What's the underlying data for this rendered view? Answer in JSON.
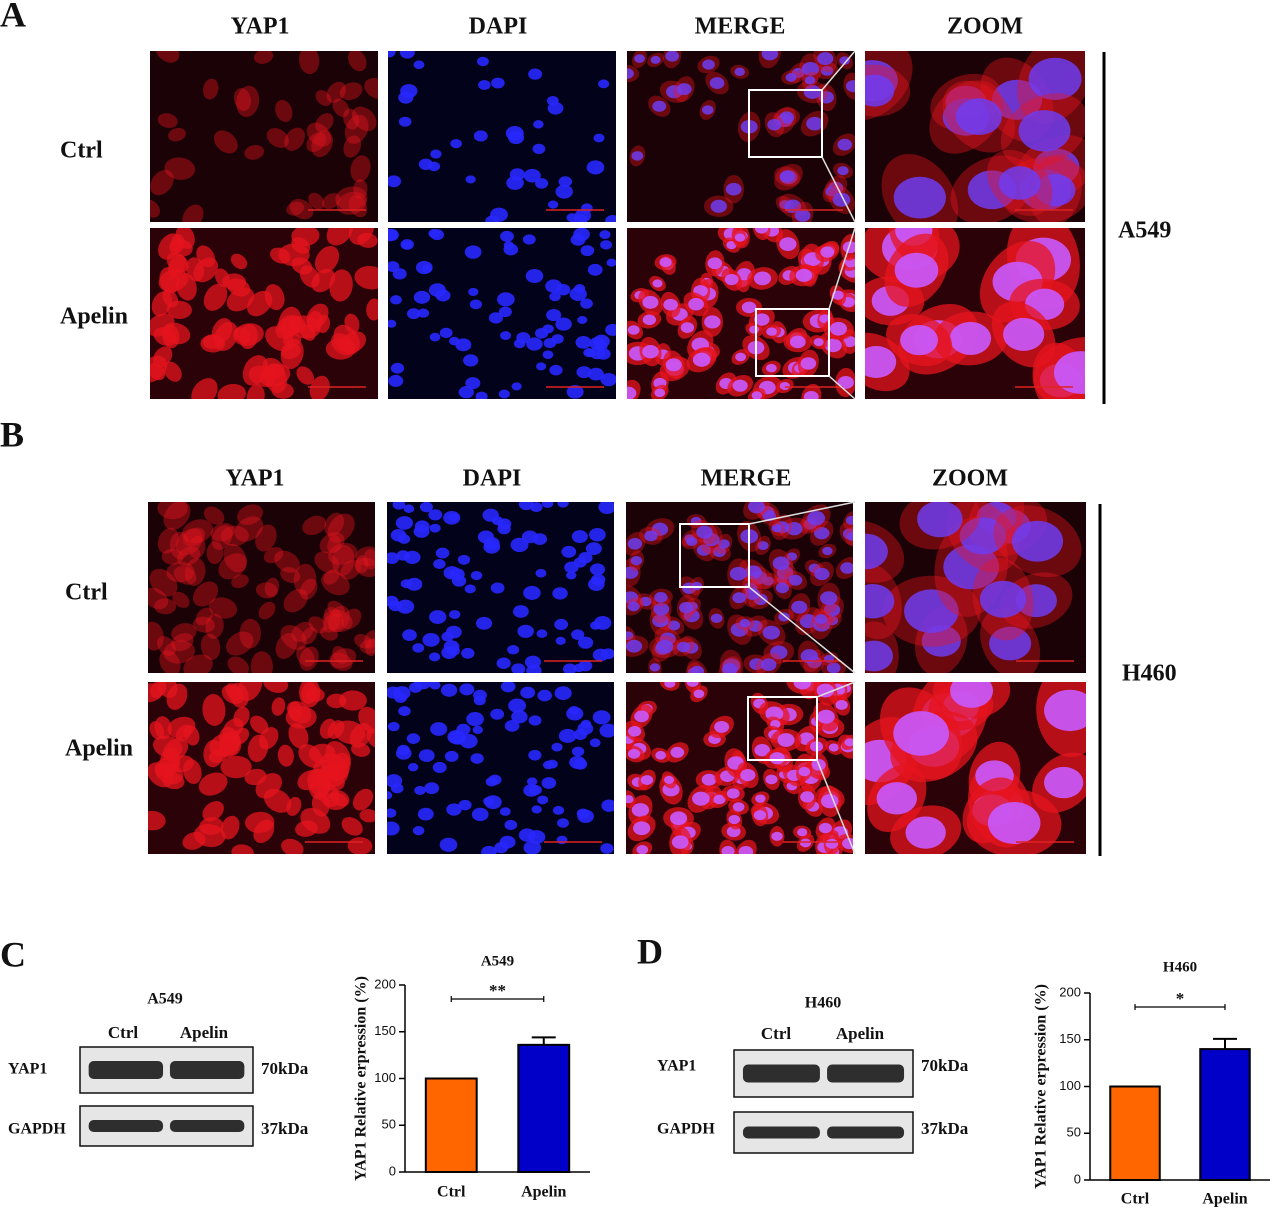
{
  "panel_a": {
    "label": "A",
    "columns": [
      "YAP1",
      "DAPI",
      "MERGE",
      "ZOOM"
    ],
    "rows": [
      "Ctrl",
      "Apelin"
    ],
    "cell_line": "A549"
  },
  "panel_b": {
    "label": "B",
    "columns": [
      "YAP1",
      "DAPI",
      "MERGE",
      "ZOOM"
    ],
    "rows": [
      "Ctrl",
      "Apelin"
    ],
    "cell_line": "H460"
  },
  "panel_c": {
    "label": "C",
    "blot": {
      "title": "A549",
      "lanes": [
        "Ctrl",
        "Apelin"
      ],
      "bands": [
        "YAP1",
        "GAPDH"
      ],
      "sizes": [
        "70kDa",
        "37kDa"
      ]
    }
  },
  "panel_d": {
    "label": "D",
    "blot": {
      "title": "H460",
      "lanes": [
        "Ctrl",
        "Apelin"
      ],
      "bands": [
        "YAP1",
        "GAPDH"
      ],
      "sizes": [
        "70kDa",
        "37kDa"
      ]
    }
  },
  "chart_data": [
    {
      "type": "bar",
      "title": "A549",
      "y_label": "YAP1 Relative erpression (%)",
      "categories": [
        "Ctrl",
        "Apelin"
      ],
      "values": [
        100,
        136
      ],
      "errors": [
        0,
        8
      ],
      "colors": [
        "#ff6600",
        "#0000c8"
      ],
      "ylim": [
        0,
        200
      ],
      "yticks": [
        0,
        50,
        100,
        150,
        200
      ],
      "significance": "**"
    },
    {
      "type": "bar",
      "title": "H460",
      "y_label": "YAP1 Relative erpression (%)",
      "categories": [
        "Ctrl",
        "Apelin"
      ],
      "values": [
        100,
        140
      ],
      "errors": [
        0,
        11
      ],
      "colors": [
        "#ff6600",
        "#0000c8"
      ],
      "ylim": [
        0,
        200
      ],
      "yticks": [
        0,
        50,
        100,
        150,
        200
      ],
      "significance": "*"
    }
  ]
}
